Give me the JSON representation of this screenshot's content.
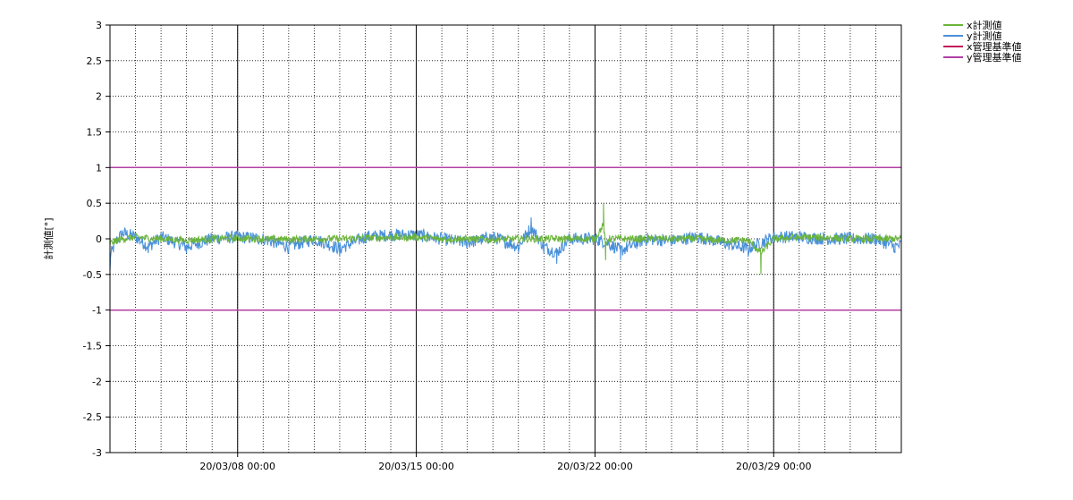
{
  "chart_data": {
    "type": "line",
    "ylabel": "計測値[°]",
    "ylim": [
      -3,
      3
    ],
    "yticks": [
      "3",
      "2.5",
      "2",
      "1.5",
      "1",
      "0.5",
      "0",
      "-0.5",
      "-1",
      "-1.5",
      "-2",
      "-2.5",
      "-3"
    ],
    "xlim": [
      "2020-03-03 00:00",
      "2020-04-03 00:00"
    ],
    "xticks": [
      {
        "label": "20/03/08 00:00",
        "x": "2020-03-08 00:00"
      },
      {
        "label": "20/03/15 00:00",
        "x": "2020-03-15 00:00"
      },
      {
        "label": "20/03/22 00:00",
        "x": "2020-03-22 00:00"
      },
      {
        "label": "20/03/29 00:00",
        "x": "2020-03-29 00:00"
      }
    ],
    "grid": true,
    "legend_position": "top-right",
    "series": [
      {
        "name": "x計測値",
        "color": "#6bb53a",
        "x": [
          "2020-03-03 00:00",
          "2020-03-03 12:00",
          "2020-03-04 00:00",
          "2020-03-05 00:00",
          "2020-03-06 00:00",
          "2020-03-07 00:00",
          "2020-03-08 00:00",
          "2020-03-09 00:00",
          "2020-03-10 00:00",
          "2020-03-11 00:00",
          "2020-03-12 00:00",
          "2020-03-13 00:00",
          "2020-03-14 00:00",
          "2020-03-15 00:00",
          "2020-03-16 00:00",
          "2020-03-17 00:00",
          "2020-03-18 00:00",
          "2020-03-19 00:00",
          "2020-03-20 00:00",
          "2020-03-21 00:00",
          "2020-03-22 00:00",
          "2020-03-22 08:00",
          "2020-03-22 10:00",
          "2020-03-22 12:00",
          "2020-03-23 00:00",
          "2020-03-24 00:00",
          "2020-03-25 00:00",
          "2020-03-26 00:00",
          "2020-03-27 00:00",
          "2020-03-28 00:00",
          "2020-03-28 12:00",
          "2020-03-29 00:00",
          "2020-03-30 00:00",
          "2020-03-31 00:00",
          "2020-04-01 00:00",
          "2020-04-02 00:00",
          "2020-04-03 00:00"
        ],
        "values": [
          -0.15,
          0.0,
          0.05,
          0.0,
          -0.05,
          0.0,
          0.02,
          0.0,
          -0.02,
          0.0,
          0.0,
          0.03,
          0.05,
          0.05,
          0.0,
          0.0,
          -0.02,
          0.0,
          0.0,
          0.0,
          0.0,
          0.5,
          -0.3,
          0.0,
          0.0,
          0.0,
          0.0,
          0.0,
          -0.05,
          -0.05,
          -0.5,
          0.0,
          0.05,
          0.05,
          0.0,
          0.0,
          0.0
        ]
      },
      {
        "name": "y計測値",
        "color": "#4a90d9",
        "x": [
          "2020-03-03 00:00",
          "2020-03-03 06:00",
          "2020-03-03 12:00",
          "2020-03-04 00:00",
          "2020-03-04 12:00",
          "2020-03-05 00:00",
          "2020-03-06 00:00",
          "2020-03-07 00:00",
          "2020-03-08 00:00",
          "2020-03-09 00:00",
          "2020-03-10 00:00",
          "2020-03-11 00:00",
          "2020-03-12 00:00",
          "2020-03-13 00:00",
          "2020-03-14 00:00",
          "2020-03-15 00:00",
          "2020-03-16 00:00",
          "2020-03-17 00:00",
          "2020-03-18 00:00",
          "2020-03-19 00:00",
          "2020-03-19 12:00",
          "2020-03-20 00:00",
          "2020-03-20 12:00",
          "2020-03-21 00:00",
          "2020-03-22 00:00",
          "2020-03-22 12:00",
          "2020-03-23 00:00",
          "2020-03-24 00:00",
          "2020-03-25 00:00",
          "2020-03-26 00:00",
          "2020-03-27 00:00",
          "2020-03-28 00:00",
          "2020-03-29 00:00",
          "2020-03-30 00:00",
          "2020-03-31 00:00",
          "2020-04-01 00:00",
          "2020-04-02 00:00",
          "2020-04-02 18:00",
          "2020-04-03 00:00"
        ],
        "values": [
          -0.45,
          -0.05,
          0.15,
          0.05,
          -0.2,
          0.05,
          -0.2,
          0.0,
          0.05,
          0.0,
          -0.2,
          0.0,
          -0.25,
          0.05,
          0.1,
          0.1,
          0.0,
          -0.1,
          0.05,
          -0.2,
          0.3,
          -0.2,
          -0.35,
          0.0,
          0.0,
          -0.1,
          -0.3,
          0.0,
          -0.05,
          0.05,
          -0.1,
          -0.25,
          0.05,
          0.05,
          0.0,
          0.0,
          0.0,
          -0.2,
          -0.15
        ]
      },
      {
        "name": "x管理基準値",
        "color": "#c2185b",
        "x": [
          "2020-03-03 00:00",
          "2020-04-03 00:00"
        ],
        "values": [
          1,
          1
        ],
        "values_lower": [
          -1,
          -1
        ]
      },
      {
        "name": "y管理基準値",
        "color": "#b03fa6",
        "x": [
          "2020-03-03 00:00",
          "2020-04-03 00:00"
        ],
        "values": [
          1,
          1
        ],
        "values_lower": [
          -1,
          -1
        ]
      }
    ]
  }
}
